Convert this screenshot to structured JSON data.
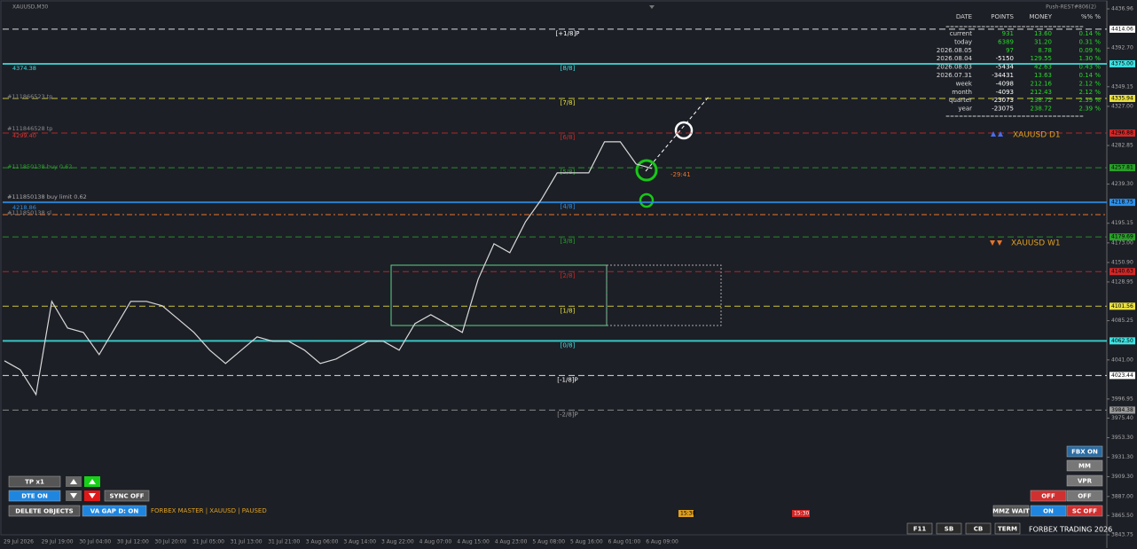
{
  "window": {
    "title": "XAUUSD,M30",
    "status": "Push-REST#806(2)"
  },
  "price_axis": {
    "ylim": [
      3843.75,
      4436.96
    ],
    "ticks": [
      {
        "value": 4436.96,
        "label": "4436.96"
      },
      {
        "value": 4392.7,
        "label": "4392.70"
      },
      {
        "value": 4349.15,
        "label": "4349.15"
      },
      {
        "value": 4327,
        "label": "4327.00"
      },
      {
        "value": 4282.85,
        "label": "4282.85"
      },
      {
        "value": 4239.3,
        "label": "4239.30"
      },
      {
        "value": 4195.15,
        "label": "4195.15"
      },
      {
        "value": 4173,
        "label": "4173.00"
      },
      {
        "value": 4150.9,
        "label": "4150.90"
      },
      {
        "value": 4128.95,
        "label": "4128.95"
      },
      {
        "value": 4085.25,
        "label": "4085.25"
      },
      {
        "value": 4041,
        "label": "4041.00"
      },
      {
        "value": 3996.95,
        "label": "3996.95"
      },
      {
        "value": 3975.4,
        "label": "3975.40"
      },
      {
        "value": 3953.3,
        "label": "3953.30"
      },
      {
        "value": 3931.3,
        "label": "3931.30"
      },
      {
        "value": 3909.3,
        "label": "3909.30"
      },
      {
        "value": 3887,
        "label": "3887.00"
      },
      {
        "value": 3865.5,
        "label": "3865.50"
      },
      {
        "value": 3843.75,
        "label": "3843.75"
      }
    ]
  },
  "levels": [
    {
      "label": "[+1/8]P",
      "price": {
        "value": 4414.06,
        "label": "4414.06"
      },
      "color": "#ffffff",
      "style": "dashed"
    },
    {
      "label": "[8/8]",
      "price": {
        "value": 4375,
        "label": "4375.00"
      },
      "color": "#3fe0e0",
      "style": "solid"
    },
    {
      "label": "[7/8]",
      "price": {
        "value": 4335.94,
        "label": "4335.94"
      },
      "color": "#e8e040",
      "style": "dashed"
    },
    {
      "label": "[6/8]",
      "price": {
        "value": 4296.88,
        "label": "4296.88"
      },
      "color": "#d02828",
      "style": "dashed"
    },
    {
      "label": "[5/8]",
      "price": {
        "value": 4257.81,
        "label": "4257.81"
      },
      "color": "#2aa02a",
      "style": "dashed"
    },
    {
      "label": "[4/8]",
      "price": {
        "value": 4218.75,
        "label": "4218.75"
      },
      "color": "#2f8fe8",
      "style": "solid"
    },
    {
      "label": "[3/8]",
      "price": {
        "value": 4179.69,
        "label": "4179.69"
      },
      "color": "#2aa02a",
      "style": "dashed"
    },
    {
      "label": "[2/8]",
      "price": {
        "value": 4140.63,
        "label": "4140.63"
      },
      "color": "#d02828",
      "style": "dashed"
    },
    {
      "label": "[1/8]",
      "price": {
        "value": 4101.56,
        "label": "4101.56"
      },
      "color": "#e8e040",
      "style": "dashed"
    },
    {
      "label": "[0/8]",
      "price": {
        "value": 4062.5,
        "label": "4062.50"
      },
      "color": "#3fe0e0",
      "style": "solid"
    },
    {
      "label": "[-1/8]P",
      "price": {
        "value": 4023.44,
        "label": "4023.44"
      },
      "color": "#ffffff",
      "style": "dashed"
    },
    {
      "label": "[-2/8]P",
      "price": {
        "value": 3984.38,
        "label": "3984.38"
      },
      "color": "#9a9a9a",
      "style": "dashed"
    }
  ],
  "orders": [
    {
      "text": "4374.38"
    },
    {
      "text": "#111866523 tp"
    },
    {
      "text": "#111846528 tp"
    },
    {
      "text": "4299.40"
    },
    {
      "text": "#111850138 buy 0.62"
    },
    {
      "text": "#111850138 buy limit 0.62"
    },
    {
      "text": "4218.86"
    },
    {
      "text": "#111850138 sl"
    }
  ],
  "price_path": {
    "closes": [
      4040,
      4030,
      4002,
      4107,
      4077,
      4072,
      4047,
      4077,
      4107,
      4107,
      4102,
      4087,
      4072,
      4052,
      4037,
      4052,
      4067,
      4062,
      4062,
      4052,
      4037,
      4042,
      4052,
      4062,
      4062,
      4052,
      4082,
      4092,
      4082,
      4072,
      4132,
      4172,
      4162,
      4197,
      4222,
      4252,
      4252,
      4252,
      4287,
      4287,
      4262,
      4257
    ]
  },
  "stats": {
    "headers": [
      "DATE",
      "POINTS",
      "MONEY",
      "%% %"
    ],
    "separator": "===============================",
    "rows": [
      [
        "current",
        "931",
        "13.60",
        "0.14 %"
      ],
      [
        "today",
        "6389",
        "31.20",
        "0.31 %"
      ],
      [
        "2026.08.05",
        "97",
        "8.78",
        "0.09 %"
      ],
      [
        "2026.08.04",
        "-5150",
        "129.55",
        "1.30 %"
      ],
      [
        "2026.08.03",
        "-5434",
        "42.63",
        "0.43 %"
      ],
      [
        "2026.07.31",
        "-34431",
        "13.63",
        "0.14 %"
      ],
      [
        "week",
        "-4098",
        "212.16",
        "2.12 %"
      ],
      [
        "month",
        "-4093",
        "212.43",
        "2.12 %"
      ],
      [
        "quarter",
        "-23073",
        "238.72",
        "2.39 %"
      ],
      [
        "year",
        "-23075",
        "238.72",
        "2.39 %"
      ]
    ]
  },
  "annotations": {
    "d1": "XAUUSD D1",
    "w1": "XAUUSD W1",
    "timer": "-29:41",
    "marker_1": "15:30",
    "marker_2": "15:30"
  },
  "left_buttons": [
    {
      "label": "TP x1"
    },
    {
      "label": "DTE ON"
    },
    {
      "label": "SYNC  OFF"
    },
    {
      "label": "DELETE OBJECTS"
    },
    {
      "label": "VA GAP D: ON"
    }
  ],
  "status_text": "FORBEX MASTER  |  XAUUSD  |  PAUSED",
  "right_buttons": [
    {
      "label": "FBX ON"
    },
    {
      "label": "MM"
    },
    {
      "label": "VPR"
    },
    {
      "label": "OFF"
    },
    {
      "label": "OFF"
    },
    {
      "label": "MMZ WAIT"
    },
    {
      "label": "ON"
    },
    {
      "label": "SC OFF"
    }
  ],
  "footer": {
    "buttons": [
      "F11",
      "SB",
      "CB",
      "TERM"
    ],
    "brand": "FORBEX TRADING 2026"
  },
  "time_axis": [
    "29 Jul 2026",
    "29 Jul 19:00",
    "30 Jul 04:00",
    "30 Jul 12:00",
    "30 Jul 20:00",
    "31 Jul 05:00",
    "31 Jul 13:00",
    "31 Jul 21:00",
    "3 Aug 06:00",
    "3 Aug 14:00",
    "3 Aug 22:00",
    "4 Aug 07:00",
    "4 Aug 15:00",
    "4 Aug 23:00",
    "5 Aug 08:00",
    "5 Aug 16:00",
    "6 Aug 01:00",
    "6 Aug 09:00"
  ]
}
